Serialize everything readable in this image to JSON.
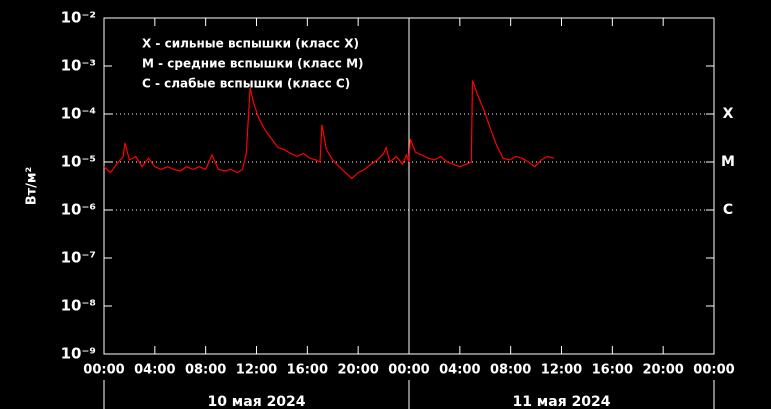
{
  "chart_data": {
    "type": "line",
    "log_y": true,
    "color": "#ff0000",
    "ylabel": "Вт/м²",
    "legend_text": [
      "X - сильные вспышки (класс X)",
      "M - средние вспышки (класс M)",
      "C - слабые вспышки (класс C)"
    ],
    "levels": [
      {
        "value": 0.0001,
        "label": "X"
      },
      {
        "value": 1e-05,
        "label": "M"
      },
      {
        "value": 1e-06,
        "label": "C"
      }
    ],
    "x_group_labels": [
      "10 мая 2024",
      "11 мая 2024"
    ],
    "vline": 24,
    "xlim": [
      0,
      48
    ],
    "xticks": [
      {
        "value": 0,
        "label": "00:00"
      },
      {
        "value": 4,
        "label": "04:00"
      },
      {
        "value": 8,
        "label": "08:00"
      },
      {
        "value": 12,
        "label": "12:00"
      },
      {
        "value": 16,
        "label": "16:00"
      },
      {
        "value": 20,
        "label": "20:00"
      },
      {
        "value": 24,
        "label": "00:00"
      },
      {
        "value": 28,
        "label": "04:00"
      },
      {
        "value": 32,
        "label": "08:00"
      },
      {
        "value": 36,
        "label": "12:00"
      },
      {
        "value": 40,
        "label": "16:00"
      },
      {
        "value": 44,
        "label": "20:00"
      },
      {
        "value": 48,
        "label": "00:00"
      }
    ],
    "ylim": [
      1e-09,
      0.01
    ],
    "yticks": [
      {
        "value": 0.01,
        "label": "10⁻²"
      },
      {
        "value": 0.001,
        "label": "10⁻³"
      },
      {
        "value": 0.0001,
        "label": "10⁻⁴"
      },
      {
        "value": 1e-05,
        "label": "10⁻⁵"
      },
      {
        "value": 1e-06,
        "label": "10⁻⁶"
      },
      {
        "value": 1e-07,
        "label": "10⁻⁷"
      },
      {
        "value": 1e-08,
        "label": "10⁻⁸"
      },
      {
        "value": 1e-09,
        "label": "10⁻⁹"
      }
    ],
    "x": [
      0,
      0.5,
      1,
      1.5,
      1.65,
      2,
      2.5,
      3,
      3.5,
      4,
      4.5,
      5,
      5.5,
      6,
      6.5,
      7,
      7.5,
      8,
      8.5,
      9,
      9.5,
      10,
      10.5,
      10.9,
      11.2,
      11.5,
      11.8,
      12.2,
      12.7,
      13.2,
      13.7,
      14.2,
      14.7,
      15.2,
      15.7,
      16.2,
      16.7,
      17,
      17.15,
      17.5,
      18,
      18.5,
      19,
      19.5,
      20,
      20.5,
      21,
      21.5,
      22,
      22.2,
      22.5,
      23,
      23.5,
      23.8,
      24,
      24.1,
      24.5,
      25,
      25.5,
      26,
      26.5,
      27,
      27.5,
      28,
      28.5,
      28.9,
      29,
      29.4,
      29.9,
      30.4,
      30.9,
      31.4,
      31.9,
      32.4,
      32.9,
      33.4,
      33.9,
      34.4,
      34.9,
      35.4
    ],
    "values": [
      8e-06,
      6e-06,
      9e-06,
      1.3e-05,
      2.5e-05,
      1.1e-05,
      1.3e-05,
      8e-06,
      1.2e-05,
      8e-06,
      7e-06,
      8e-06,
      7e-06,
      6.5e-06,
      8e-06,
      7e-06,
      8e-06,
      7e-06,
      1.4e-05,
      7e-06,
      6.5e-06,
      7e-06,
      6e-06,
      7e-06,
      1.5e-05,
      0.00035,
      0.00016,
      8e-05,
      4.5e-05,
      3e-05,
      2e-05,
      1.8e-05,
      1.5e-05,
      1.3e-05,
      1.5e-05,
      1.2e-05,
      1.1e-05,
      1e-05,
      6e-05,
      1.8e-05,
      1.1e-05,
      8e-06,
      6e-06,
      4.5e-06,
      6e-06,
      7e-06,
      9e-06,
      1.1e-05,
      1.5e-05,
      2e-05,
      1e-05,
      1.3e-05,
      9e-06,
      1.4e-05,
      1e-05,
      3e-05,
      1.6e-05,
      1.4e-05,
      1.2e-05,
      1.1e-05,
      1.3e-05,
      1e-05,
      9e-06,
      8e-06,
      9e-06,
      1e-05,
      0.0005,
      0.00025,
      0.00012,
      5e-05,
      2.2e-05,
      1.2e-05,
      1.1e-05,
      1.3e-05,
      1.2e-05,
      1e-05,
      8e-06,
      1.1e-05,
      1.3e-05,
      1.2e-05
    ]
  }
}
